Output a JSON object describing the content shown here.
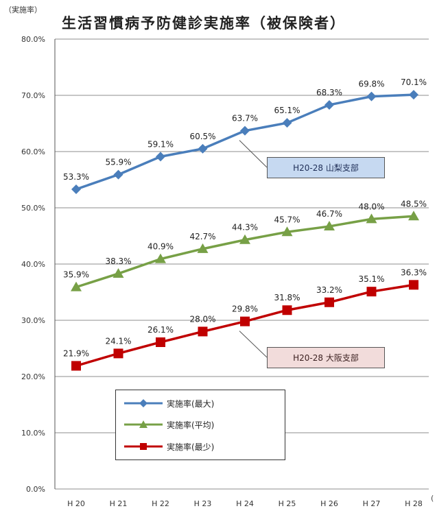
{
  "page": {
    "unit_label": "（実施率）",
    "title": "生活習慣病予防健診実施率（被保険者）",
    "edge_mark": "("
  },
  "callouts": {
    "max": "H20-28 山梨支部",
    "min": "H20-28 大阪支部"
  },
  "colors": {
    "max": "#4a7ebb",
    "avg": "#77a046",
    "min": "#c00000",
    "grid": "#8c8c8c"
  },
  "chart_data": {
    "type": "line",
    "title": "生活習慣病予防健診実施率（被保険者）",
    "ylabel": "（実施率）",
    "categories": [
      "H 20",
      "H 21",
      "H 22",
      "H 23",
      "H 24",
      "H 25",
      "H 26",
      "H 27",
      "H 28"
    ],
    "ylim": [
      0,
      80
    ],
    "yticks": [
      "0.0%",
      "10.0%",
      "20.0%",
      "30.0%",
      "40.0%",
      "50.0%",
      "60.0%",
      "70.0%",
      "80.0%"
    ],
    "grid": true,
    "legend_position": "bottom-left",
    "series": [
      {
        "key": "max",
        "name": "実施率(最大)",
        "marker": "diamond",
        "values": [
          53.3,
          55.9,
          59.1,
          60.5,
          63.7,
          65.1,
          68.3,
          69.8,
          70.1
        ],
        "labels": [
          "53.3%",
          "55.9%",
          "59.1%",
          "60.5%",
          "63.7%",
          "65.1%",
          "68.3%",
          "69.8%",
          "70.1%"
        ]
      },
      {
        "key": "avg",
        "name": "実施率(平均)",
        "marker": "triangle",
        "values": [
          35.9,
          38.3,
          40.9,
          42.7,
          44.3,
          45.7,
          46.7,
          48.0,
          48.5
        ],
        "labels": [
          "35.9%",
          "38.3%",
          "40.9%",
          "42.7%",
          "44.3%",
          "45.7%",
          "46.7%",
          "48.0%",
          "48.5%"
        ]
      },
      {
        "key": "min",
        "name": "実施率(最少)",
        "marker": "square",
        "values": [
          21.9,
          24.1,
          26.1,
          28.0,
          29.8,
          31.8,
          33.2,
          35.1,
          36.3
        ],
        "labels": [
          "21.9%",
          "24.1%",
          "26.1%",
          "28.0%",
          "29.8%",
          "31.8%",
          "33.2%",
          "35.1%",
          "36.3%"
        ]
      }
    ]
  }
}
